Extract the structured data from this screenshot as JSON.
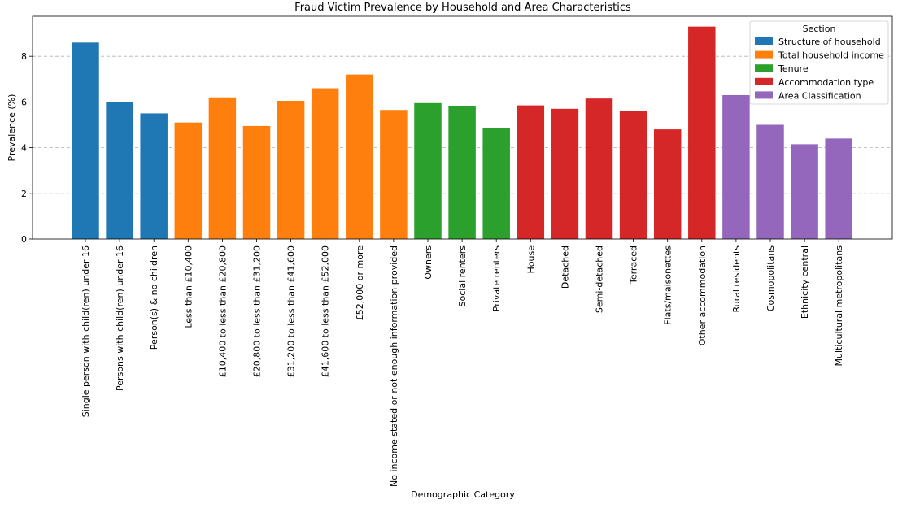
{
  "chart_data": {
    "type": "bar",
    "title": "Fraud Victim Prevalence by Household and Area Characteristics",
    "xlabel": "Demographic Category",
    "ylabel": "Prevalence (%)",
    "ylim": [
      0,
      9.75
    ],
    "yticks": [
      0,
      2,
      4,
      6,
      8
    ],
    "grid": "y-dashed",
    "legend": {
      "title": "Section",
      "placement": "top-right",
      "entries": [
        {
          "name": "Structure of household",
          "color": "#1f77b4"
        },
        {
          "name": "Total household income",
          "color": "#ff7f0e"
        },
        {
          "name": "Tenure",
          "color": "#2ca02c"
        },
        {
          "name": "Accommodation type",
          "color": "#d62728"
        },
        {
          "name": "Area Classification",
          "color": "#9467bd"
        }
      ]
    },
    "categories": [
      "Single person with child(ren) under 16",
      "Persons with child(ren) under 16",
      "Person(s) & no children",
      "Less than £10,400",
      "£10,400 to less than £20,800",
      "£20,800 to less than £31,200",
      "£31,200 to less than £41,600",
      "£41,600 to less than £52,000",
      "£52,000 or more",
      "No income stated or not enough information provided",
      "Owners",
      "Social renters",
      "Private renters",
      "House",
      "Detached",
      "Semi-detached",
      "Terraced",
      "Flats/maisonettes",
      "Other accommodation",
      "Rural residents",
      "Cosmopolitans",
      "Ethnicity central",
      "Multicultural metropolitans"
    ],
    "values": [
      8.6,
      6.0,
      5.5,
      5.1,
      6.2,
      4.95,
      6.05,
      6.6,
      7.2,
      5.65,
      5.95,
      5.8,
      4.85,
      5.85,
      5.7,
      6.15,
      5.6,
      4.8,
      9.3,
      6.3,
      5.0,
      4.15,
      4.4
    ],
    "sections": [
      0,
      0,
      0,
      1,
      1,
      1,
      1,
      1,
      1,
      1,
      2,
      2,
      2,
      3,
      3,
      3,
      3,
      3,
      3,
      4,
      4,
      4,
      4
    ]
  }
}
